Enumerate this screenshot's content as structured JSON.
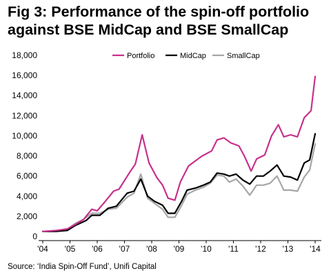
{
  "chart_data": {
    "type": "line",
    "title": "Fig 3: Performance of the spin-off portfolio against BSE MidCap and BSE SmallCap",
    "xlabel": "",
    "ylabel": "",
    "x_ticks": [
      "'04",
      "'05",
      "'06",
      "'07",
      "'08",
      "'09",
      "'10",
      "'11",
      "'12",
      "'13",
      "'14"
    ],
    "xlim": [
      2004,
      2014
    ],
    "y_ticks": [
      "0",
      "2,000",
      "4,000",
      "6,000",
      "8,000",
      "10,000",
      "12,000",
      "14,000",
      "16,000",
      "18,000"
    ],
    "ylim": [
      0,
      18000
    ],
    "grid": false,
    "legend_position": "top",
    "source": "Source: ‘India Spin-Off Fund’, Unifi Capital",
    "series": [
      {
        "name": "Portfolio",
        "color": "#c8308c",
        "points": [
          [
            2004.0,
            500
          ],
          [
            2004.5,
            600
          ],
          [
            2004.9,
            750
          ],
          [
            2005.2,
            1200
          ],
          [
            2005.5,
            1700
          ],
          [
            2005.8,
            2700
          ],
          [
            2006.0,
            2550
          ],
          [
            2006.3,
            3500
          ],
          [
            2006.6,
            4500
          ],
          [
            2006.8,
            4700
          ],
          [
            2007.2,
            6400
          ],
          [
            2007.4,
            7200
          ],
          [
            2007.65,
            10100
          ],
          [
            2007.9,
            7300
          ],
          [
            2008.2,
            5800
          ],
          [
            2008.4,
            5100
          ],
          [
            2008.6,
            3800
          ],
          [
            2008.85,
            3600
          ],
          [
            2009.05,
            5400
          ],
          [
            2009.35,
            7000
          ],
          [
            2009.6,
            7500
          ],
          [
            2009.85,
            8000
          ],
          [
            2010.2,
            8500
          ],
          [
            2010.4,
            9600
          ],
          [
            2010.65,
            9800
          ],
          [
            2010.9,
            9300
          ],
          [
            2011.2,
            9000
          ],
          [
            2011.4,
            8000
          ],
          [
            2011.65,
            6500
          ],
          [
            2011.85,
            7700
          ],
          [
            2012.15,
            8100
          ],
          [
            2012.4,
            10000
          ],
          [
            2012.65,
            11100
          ],
          [
            2012.85,
            9900
          ],
          [
            2013.1,
            10100
          ],
          [
            2013.35,
            9900
          ],
          [
            2013.6,
            11800
          ],
          [
            2013.85,
            12500
          ],
          [
            2014.0,
            15900
          ]
        ]
      },
      {
        "name": "MidCap",
        "color": "#000000",
        "points": [
          [
            2004.0,
            500
          ],
          [
            2004.5,
            500
          ],
          [
            2004.9,
            600
          ],
          [
            2005.2,
            1100
          ],
          [
            2005.6,
            1600
          ],
          [
            2005.8,
            2100
          ],
          [
            2006.1,
            2100
          ],
          [
            2006.4,
            2800
          ],
          [
            2006.7,
            3000
          ],
          [
            2007.1,
            4300
          ],
          [
            2007.35,
            4500
          ],
          [
            2007.6,
            5700
          ],
          [
            2007.85,
            4000
          ],
          [
            2008.1,
            3500
          ],
          [
            2008.4,
            3100
          ],
          [
            2008.6,
            2300
          ],
          [
            2008.85,
            2300
          ],
          [
            2009.1,
            3500
          ],
          [
            2009.3,
            4600
          ],
          [
            2009.6,
            4800
          ],
          [
            2009.9,
            5100
          ],
          [
            2010.15,
            5400
          ],
          [
            2010.4,
            6300
          ],
          [
            2010.65,
            6200
          ],
          [
            2010.85,
            6000
          ],
          [
            2011.1,
            6200
          ],
          [
            2011.35,
            5600
          ],
          [
            2011.6,
            5200
          ],
          [
            2011.85,
            6000
          ],
          [
            2012.1,
            6000
          ],
          [
            2012.35,
            6500
          ],
          [
            2012.6,
            7100
          ],
          [
            2012.85,
            6000
          ],
          [
            2013.1,
            5900
          ],
          [
            2013.35,
            5600
          ],
          [
            2013.6,
            7300
          ],
          [
            2013.8,
            7600
          ],
          [
            2014.0,
            10200
          ]
        ]
      },
      {
        "name": "SmallCap",
        "color": "#a6a6a6",
        "points": [
          [
            2004.0,
            500
          ],
          [
            2004.5,
            500
          ],
          [
            2004.9,
            700
          ],
          [
            2005.2,
            1300
          ],
          [
            2005.5,
            1700
          ],
          [
            2005.8,
            2300
          ],
          [
            2006.1,
            2300
          ],
          [
            2006.4,
            2700
          ],
          [
            2006.7,
            2800
          ],
          [
            2007.1,
            3900
          ],
          [
            2007.35,
            4300
          ],
          [
            2007.6,
            6200
          ],
          [
            2007.85,
            3800
          ],
          [
            2008.1,
            3300
          ],
          [
            2008.4,
            2700
          ],
          [
            2008.6,
            1900
          ],
          [
            2008.85,
            1900
          ],
          [
            2009.1,
            3100
          ],
          [
            2009.3,
            4200
          ],
          [
            2009.6,
            4600
          ],
          [
            2009.9,
            4900
          ],
          [
            2010.15,
            5300
          ],
          [
            2010.4,
            6100
          ],
          [
            2010.65,
            6000
          ],
          [
            2010.85,
            5400
          ],
          [
            2011.1,
            5700
          ],
          [
            2011.35,
            5000
          ],
          [
            2011.6,
            4100
          ],
          [
            2011.85,
            5100
          ],
          [
            2012.1,
            5100
          ],
          [
            2012.35,
            5300
          ],
          [
            2012.6,
            6000
          ],
          [
            2012.85,
            4600
          ],
          [
            2013.1,
            4600
          ],
          [
            2013.35,
            4500
          ],
          [
            2013.6,
            5900
          ],
          [
            2013.8,
            6600
          ],
          [
            2014.0,
            9200
          ]
        ]
      }
    ]
  }
}
